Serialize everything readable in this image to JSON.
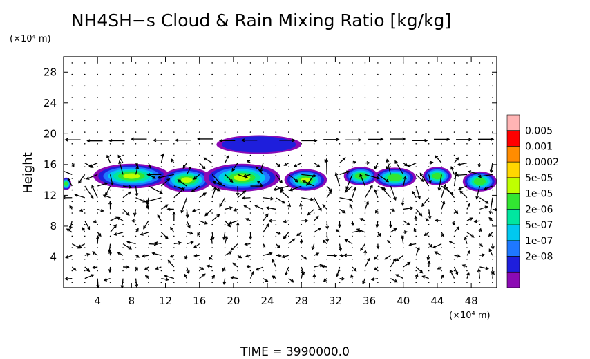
{
  "chart_data": {
    "type": "heatmap",
    "title": "NH4SH−s Cloud & Rain Mixing Ratio [kg/kg]",
    "x_unit": "(×10⁴ m)",
    "y_unit": "(×10⁴ m)",
    "ylabel": "Height",
    "xlim": [
      0,
      51
    ],
    "ylim": [
      0,
      30
    ],
    "x_ticks": [
      4,
      8,
      12,
      16,
      20,
      24,
      28,
      32,
      36,
      40,
      44,
      48
    ],
    "y_ticks": [
      4,
      8,
      12,
      16,
      20,
      24,
      28
    ],
    "grid": false,
    "vectors": true,
    "colorbar": {
      "placement": "right",
      "labels": [
        "0.005",
        "0.001",
        "0.0002",
        "5e-05",
        "1e-05",
        "2e-06",
        "5e-07",
        "1e-07",
        "2e-08"
      ],
      "colors": [
        "#ff0000",
        "#ff8c00",
        "#ffd700",
        "#bfff00",
        "#32e632",
        "#00e6a0",
        "#00c8f0",
        "#1e78ff",
        "#1e1edc",
        "#8c0ab4"
      ],
      "top_color": "#ffb4b4"
    },
    "cloud_blobs": [
      {
        "x": 8.0,
        "y": 14.5,
        "rx": 4.5,
        "ry": 1.6,
        "level": 3
      },
      {
        "x": 14.5,
        "y": 14.0,
        "rx": 3.0,
        "ry": 1.6,
        "level": 2
      },
      {
        "x": 21.0,
        "y": 14.3,
        "rx": 4.5,
        "ry": 1.8,
        "level": 3
      },
      {
        "x": 28.5,
        "y": 14.0,
        "rx": 2.5,
        "ry": 1.4,
        "level": 3
      },
      {
        "x": 35.0,
        "y": 14.5,
        "rx": 2.0,
        "ry": 1.2,
        "level": 4
      },
      {
        "x": 39.0,
        "y": 14.3,
        "rx": 2.5,
        "ry": 1.3,
        "level": 4
      },
      {
        "x": 44.0,
        "y": 14.5,
        "rx": 1.7,
        "ry": 1.2,
        "level": 4
      },
      {
        "x": 49.0,
        "y": 13.8,
        "rx": 2.0,
        "ry": 1.3,
        "level": 4
      },
      {
        "x": 23.0,
        "y": 18.6,
        "rx": 5.0,
        "ry": 1.2,
        "level": 8
      },
      {
        "x": 0.3,
        "y": 13.5,
        "rx": 0.6,
        "ry": 0.8,
        "level": 4
      }
    ],
    "time_label": "TIME  =  3990000.0"
  }
}
